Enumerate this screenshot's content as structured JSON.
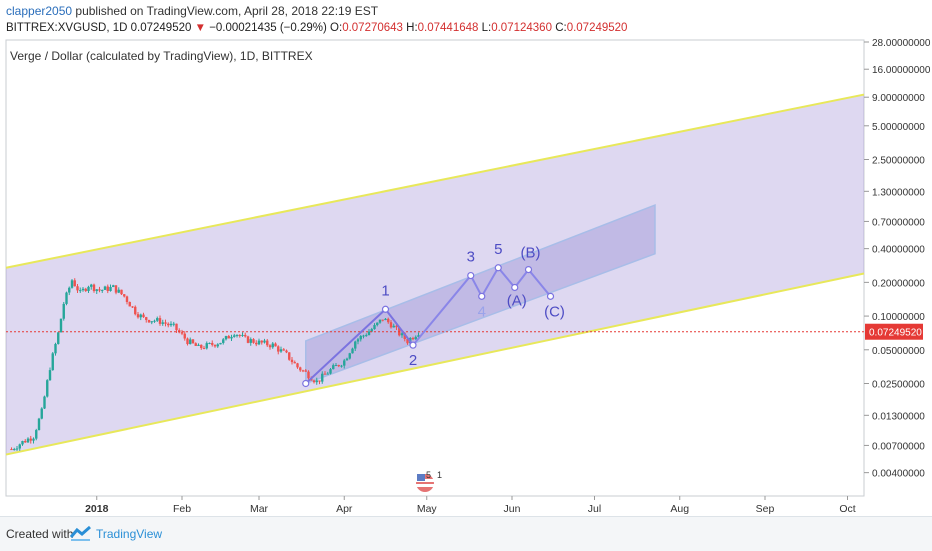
{
  "header": {
    "author": "clapper2050",
    "published_text": "published on TradingView.com, April 28, 2018 22:19 EST",
    "symbol": "BITTREX:XVGUSD, 1D",
    "last": "0.07249520",
    "change": "−0.00021435 (−0.29%)",
    "o_label": "O:",
    "o_value": "0.07270643",
    "h_label": "H:",
    "h_value": "0.07441648",
    "l_label": "L:",
    "l_value": "0.07124360",
    "c_label": "C:",
    "c_value": "0.07249520"
  },
  "footer": {
    "created_with": "Created with",
    "brand": "TradingView"
  },
  "chart_data": {
    "type": "candlestick",
    "title": "Verge / Dollar (calculated by TradingView), 1D, BITTREX",
    "y_scale": "log",
    "y_ticks": [
      "28.00000000",
      "16.00000000",
      "9.00000000",
      "5.00000000",
      "2.50000000",
      "1.30000000",
      "0.70000000",
      "0.40000000",
      "0.20000000",
      "0.10000000",
      "0.05000000",
      "0.02500000",
      "0.01300000",
      "0.00700000",
      "0.00400000"
    ],
    "x_ticks": [
      "2018",
      "Feb",
      "Mar",
      "Apr",
      "May",
      "Jun",
      "Jul",
      "Aug",
      "Sep",
      "Oct"
    ],
    "last_price": "0.07249520",
    "colors": {
      "up": "#26a69a",
      "down": "#ef5350",
      "channel": "#9a88d6",
      "channel_line": "#e8e85a",
      "inner_channel": "#a8bde8",
      "wave": "#7b73e0",
      "price_line": "#e53935"
    },
    "price_path": [
      {
        "t": "2017-12-01",
        "p": 0.0065
      },
      {
        "t": "2017-12-05",
        "p": 0.0075
      },
      {
        "t": "2017-12-09",
        "p": 0.0085
      },
      {
        "t": "2017-12-12",
        "p": 0.014
      },
      {
        "t": "2017-12-15",
        "p": 0.035
      },
      {
        "t": "2017-12-18",
        "p": 0.07
      },
      {
        "t": "2017-12-20",
        "p": 0.13
      },
      {
        "t": "2017-12-23",
        "p": 0.21
      },
      {
        "t": "2017-12-26",
        "p": 0.16
      },
      {
        "t": "2017-12-29",
        "p": 0.19
      },
      {
        "t": "2018-01-02",
        "p": 0.17
      },
      {
        "t": "2018-01-07",
        "p": 0.18
      },
      {
        "t": "2018-01-11",
        "p": 0.15
      },
      {
        "t": "2018-01-15",
        "p": 0.11
      },
      {
        "t": "2018-01-18",
        "p": 0.095
      },
      {
        "t": "2018-01-24",
        "p": 0.09
      },
      {
        "t": "2018-01-29",
        "p": 0.08
      },
      {
        "t": "2018-02-03",
        "p": 0.06
      },
      {
        "t": "2018-02-07",
        "p": 0.052
      },
      {
        "t": "2018-02-11",
        "p": 0.055
      },
      {
        "t": "2018-02-16",
        "p": 0.06
      },
      {
        "t": "2018-02-20",
        "p": 0.072
      },
      {
        "t": "2018-02-24",
        "p": 0.062
      },
      {
        "t": "2018-03-01",
        "p": 0.058
      },
      {
        "t": "2018-03-06",
        "p": 0.055
      },
      {
        "t": "2018-03-11",
        "p": 0.045
      },
      {
        "t": "2018-03-15",
        "p": 0.035
      },
      {
        "t": "2018-03-19",
        "p": 0.03
      },
      {
        "t": "2018-03-22",
        "p": 0.026
      },
      {
        "t": "2018-03-27",
        "p": 0.033
      },
      {
        "t": "2018-04-01",
        "p": 0.04
      },
      {
        "t": "2018-04-05",
        "p": 0.06
      },
      {
        "t": "2018-04-09",
        "p": 0.07
      },
      {
        "t": "2018-04-12",
        "p": 0.08
      },
      {
        "t": "2018-04-15",
        "p": 0.095
      },
      {
        "t": "2018-04-18",
        "p": 0.085
      },
      {
        "t": "2018-04-21",
        "p": 0.07
      },
      {
        "t": "2018-04-24",
        "p": 0.06
      },
      {
        "t": "2018-04-28",
        "p": 0.0725
      }
    ],
    "wave_points": [
      {
        "label": "",
        "t": "2018-03-18",
        "p": 0.025
      },
      {
        "label": "1",
        "t": "2018-04-16",
        "p": 0.115
      },
      {
        "label": "2",
        "t": "2018-04-26",
        "p": 0.055
      },
      {
        "label": "3",
        "t": "2018-05-17",
        "p": 0.23
      },
      {
        "label": "4",
        "t": "2018-05-21",
        "p": 0.15
      },
      {
        "label": "5",
        "t": "2018-05-27",
        "p": 0.27
      },
      {
        "label": "(A)",
        "t": "2018-06-02",
        "p": 0.18
      },
      {
        "label": "(B)",
        "t": "2018-06-07",
        "p": 0.26
      },
      {
        "label": "(C)",
        "t": "2018-06-15",
        "p": 0.15
      }
    ]
  }
}
